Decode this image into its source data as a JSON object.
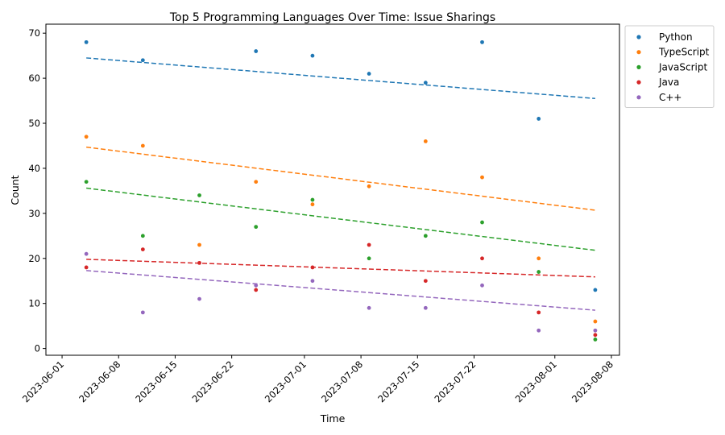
{
  "chart_data": {
    "type": "scatter",
    "title": "Top 5 Programming Languages Over Time: Issue Sharings",
    "xlabel": "Time",
    "ylabel": "Count",
    "x_type": "date",
    "xlim": [
      "2023-05-30",
      "2023-08-09"
    ],
    "ylim": [
      -1.5,
      72
    ],
    "x_ticks": [
      "2023-06-01",
      "2023-06-08",
      "2023-06-15",
      "2023-06-22",
      "2023-07-01",
      "2023-07-08",
      "2023-07-15",
      "2023-07-22",
      "2023-08-01",
      "2023-08-08"
    ],
    "y_ticks": [
      0,
      10,
      20,
      30,
      40,
      50,
      60,
      70
    ],
    "grid": false,
    "legend_position": "outside-top-right",
    "x": [
      "2023-06-04",
      "2023-06-11",
      "2023-06-18",
      "2023-06-25",
      "2023-07-02",
      "2023-07-09",
      "2023-07-16",
      "2023-07-23",
      "2023-07-30",
      "2023-08-06"
    ],
    "series": [
      {
        "name": "Python",
        "color": "#1f77b4",
        "values": [
          68,
          64,
          null,
          66,
          65,
          61,
          59,
          68,
          51,
          13
        ],
        "trend": [
          64.5,
          55.5
        ]
      },
      {
        "name": "TypeScript",
        "color": "#ff7f0e",
        "values": [
          47,
          45,
          23,
          37,
          32,
          36,
          46,
          38,
          20,
          6
        ],
        "trend": [
          44.7,
          30.7
        ]
      },
      {
        "name": "JavaScript",
        "color": "#2ca02c",
        "values": [
          37,
          25,
          34,
          27,
          33,
          20,
          25,
          28,
          17,
          2
        ],
        "trend": [
          35.6,
          21.8
        ]
      },
      {
        "name": "Java",
        "color": "#d62728",
        "values": [
          18,
          22,
          19,
          13,
          18,
          23,
          15,
          20,
          8,
          3
        ],
        "trend": [
          19.8,
          15.9
        ]
      },
      {
        "name": "C++",
        "color": "#9467bd",
        "values": [
          21,
          8,
          11,
          14,
          15,
          9,
          9,
          14,
          4,
          4
        ],
        "trend": [
          17.3,
          8.5
        ]
      }
    ]
  }
}
